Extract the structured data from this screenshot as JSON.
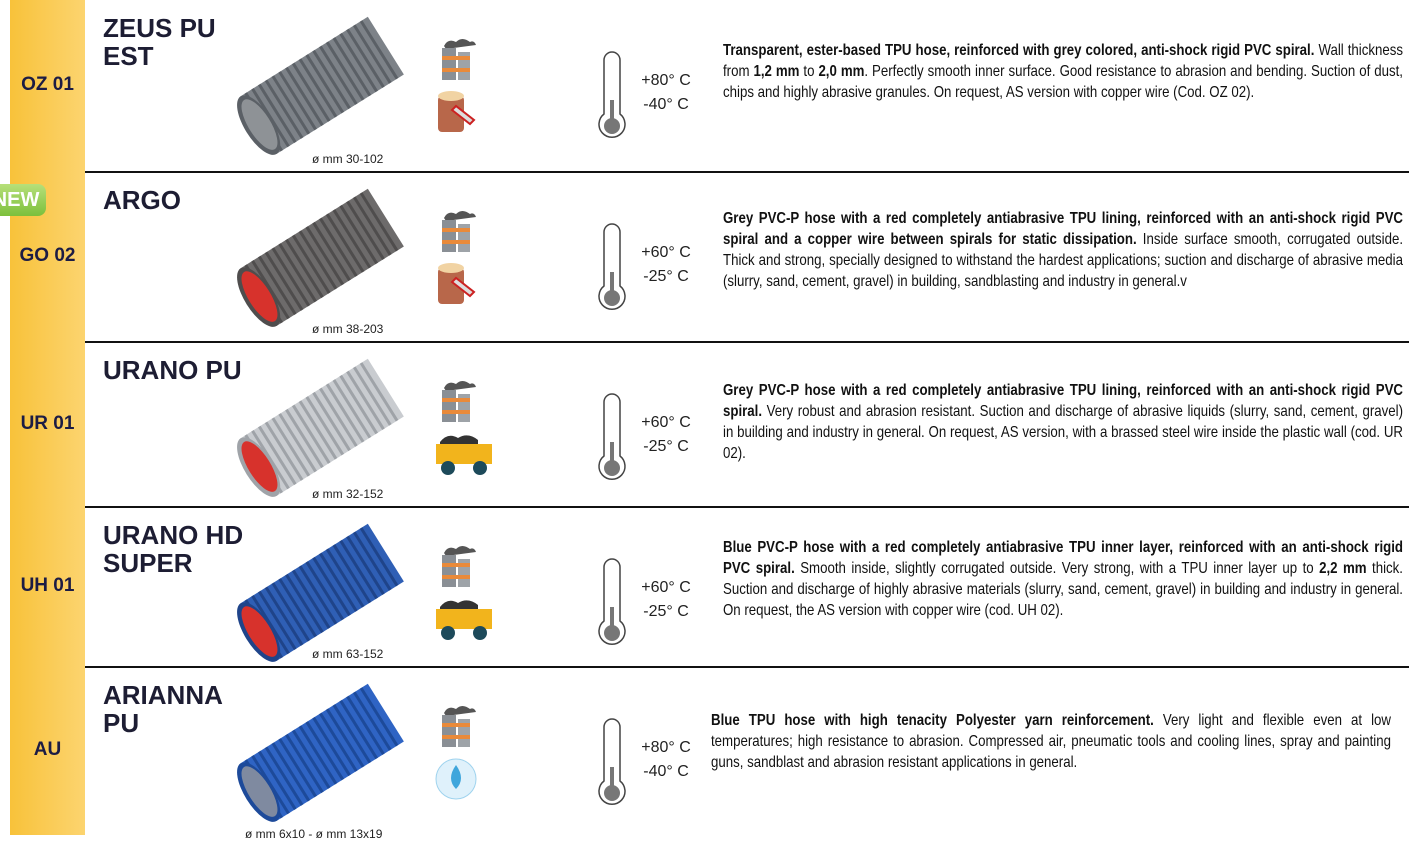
{
  "badge": "NEW",
  "rows": [
    {
      "code": "OZ 01",
      "name": "ZEUS PU EST",
      "diameter": "ø mm 30-102",
      "temp_max": "+80° C",
      "temp_min": "-40° C",
      "description": [
        {
          "text": "Transparent, ester-based TPU hose, reinforced with grey colored, anti-shock rigid PVC spiral.",
          "bold": true
        },
        {
          "text": " Wall thickness from ",
          "bold": false
        },
        {
          "text": "1,2 mm",
          "bold": true
        },
        {
          "text": " to ",
          "bold": false
        },
        {
          "text": "2,0 mm",
          "bold": true
        },
        {
          "text": ". Perfectly smooth inner surface. Good resistance to abrasion and bending. Suction of dust, chips and highly abrasive granules. On request, AS version with copper wire (Cod. OZ 02).",
          "bold": false
        }
      ]
    },
    {
      "code": "GO 02",
      "name": "ARGO",
      "diameter": "ø mm 38-203",
      "temp_max": "+60° C",
      "temp_min": "-25° C",
      "description": [
        {
          "text": "Grey PVC-P hose with a red completely antiabrasive TPU lining, reinforced with an anti-shock rigid PVC spiral and a copper wire between spirals for static dissipation.",
          "bold": true
        },
        {
          "text": " Inside surface smooth, corrugated outside. Thick and strong, specially designed to withstand the hardest applications; suction and discharge of abrasive media (slurry, sand, cement, gravel) in building, sandblasting and industry in general.v",
          "bold": false
        }
      ]
    },
    {
      "code": "UR 01",
      "name": "URANO PU",
      "diameter": "ø mm 32-152",
      "temp_max": "+60° C",
      "temp_min": "-25° C",
      "description": [
        {
          "text": "Grey PVC-P hose with a red completely antiabrasive TPU lining, reinforced with an anti-shock rigid PVC spiral.",
          "bold": true
        },
        {
          "text": " Very robust and abrasion resistant. Suction and discharge of abrasive liquids (slurry, sand, cement, gravel) in building and industry in general. On request, AS version, with a brassed steel wire inside the plastic wall (cod. UR 02).",
          "bold": false
        }
      ]
    },
    {
      "code": "UH 01",
      "name": "URANO HD SUPER",
      "diameter": "ø mm 63-152",
      "temp_max": "+60° C",
      "temp_min": "-25° C",
      "description": [
        {
          "text": "Blue PVC-P hose with a red completely antiabrasive TPU inner layer, reinforced with an anti-shock rigid PVC spiral.",
          "bold": true
        },
        {
          "text": " Smooth inside, slightly corrugated outside. Very strong, with a TPU inner layer up to ",
          "bold": false
        },
        {
          "text": "2,2 mm",
          "bold": true
        },
        {
          "text": " thick. Suction and discharge of highly abrasive materials (slurry, sand, cement, gravel) in building and industry in general. On request, the AS version with copper wire (cod. UH 02).",
          "bold": false
        }
      ]
    },
    {
      "code": "AU",
      "name": "ARIANNA PU",
      "diameter": "ø mm 6x10 - ø mm 13x19",
      "temp_max": "+80° C",
      "temp_min": "-40° C",
      "description": [
        {
          "text": "Blue TPU hose with high tenacity Polyester yarn reinforcement.",
          "bold": true
        },
        {
          "text": " Very light and flexible even at low temperatures; high resistance to abrasion. Compressed air, pneumatic tools and cooling lines, spray and painting guns, sandblast and abrasion resistant applications in general.",
          "bold": false
        }
      ]
    }
  ]
}
